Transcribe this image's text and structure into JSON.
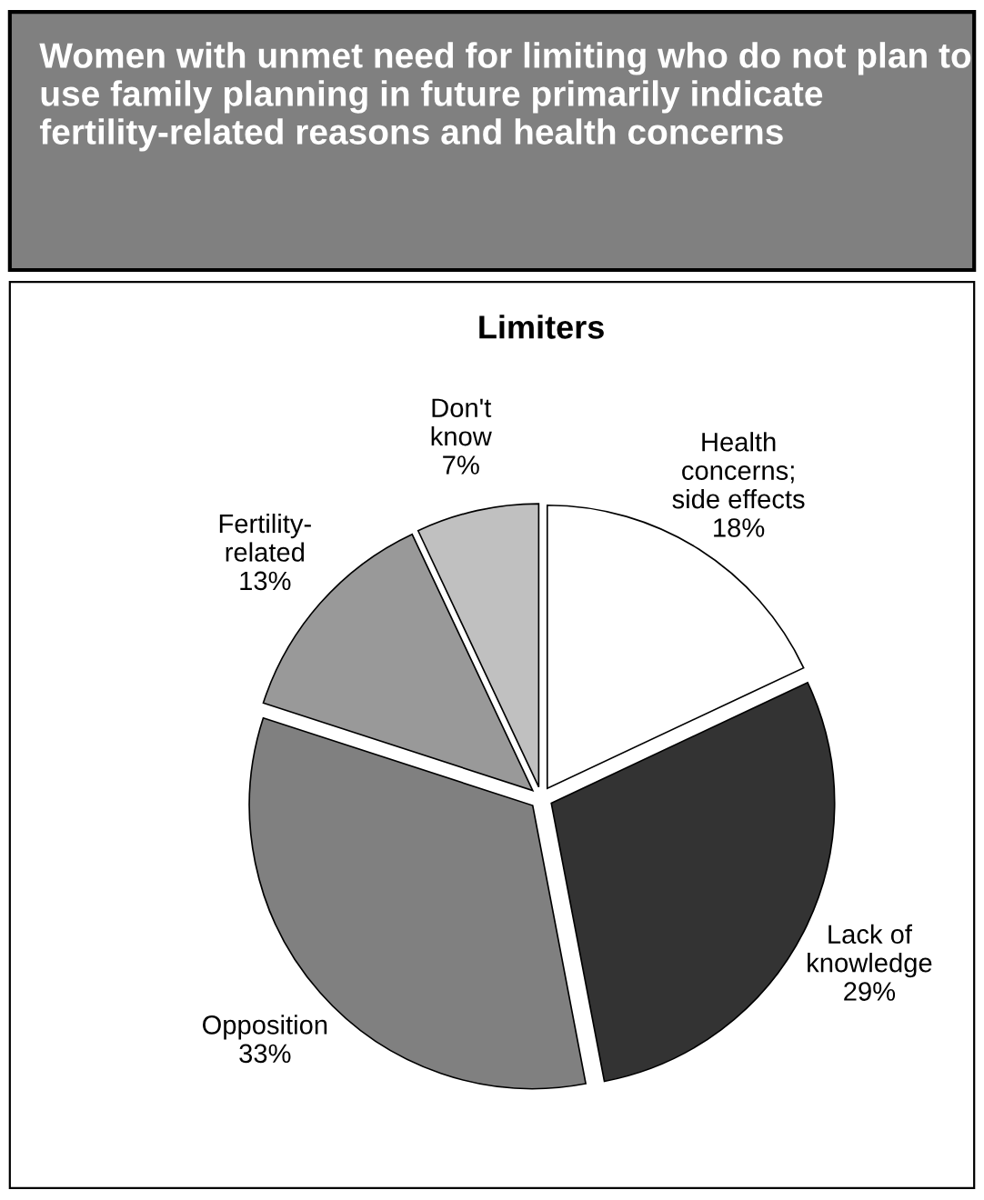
{
  "chart_data": {
    "type": "pie",
    "title": "Women with unmet need for limiting who do not plan to use family planning in future primarily indicate fertility-related reasons and health concerns",
    "subtitle": "Limiters",
    "categories": [
      "Health\nconcerns;\nside effects",
      "Lack of\nknowledge",
      "Opposition",
      "Fertility-\nrelated",
      "Don't\nknow"
    ],
    "values": [
      18,
      29,
      33,
      13,
      7
    ],
    "colors": [
      "#ffffff",
      "#333333",
      "#808080",
      "#999999",
      "#c0c0c0"
    ],
    "value_labels": [
      "18%",
      "29%",
      "33%",
      "13%",
      "7%"
    ],
    "legend": false
  }
}
